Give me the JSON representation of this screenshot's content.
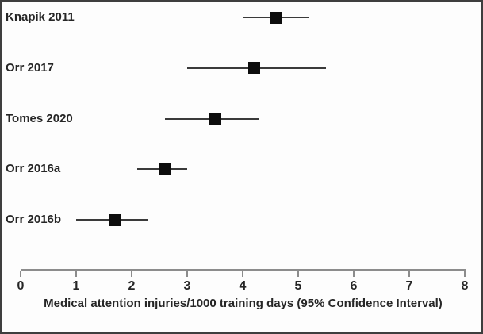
{
  "figure": {
    "background": "#fdfdfd",
    "border_color": "#3e3e3e"
  },
  "chart_data": {
    "type": "scatter",
    "variant": "forest-plot",
    "title": "",
    "xlabel": "Medical attention injuries/1000 training days (95% Confidence Interval)",
    "ylabel": "",
    "xlim": [
      0,
      8
    ],
    "xticks": [
      0,
      1,
      2,
      3,
      4,
      5,
      6,
      7,
      8
    ],
    "grid": false,
    "legend": false,
    "marker_shape": "square",
    "marker_color": "#0d0d0d",
    "ci_line_color": "#3a3a3a",
    "axis_color": "#8c8c8c",
    "text_color": "#262626",
    "studies": [
      {
        "label": "Knapik 2011",
        "estimate": 4.6,
        "ci_lower": 4.0,
        "ci_upper": 5.2
      },
      {
        "label": "Orr 2017",
        "estimate": 4.2,
        "ci_lower": 3.0,
        "ci_upper": 5.5
      },
      {
        "label": "Tomes 2020",
        "estimate": 3.5,
        "ci_lower": 2.6,
        "ci_upper": 4.3
      },
      {
        "label": "Orr 2016a",
        "estimate": 2.6,
        "ci_lower": 2.1,
        "ci_upper": 3.0
      },
      {
        "label": "Orr 2016b",
        "estimate": 1.7,
        "ci_lower": 1.0,
        "ci_upper": 2.3
      }
    ]
  }
}
